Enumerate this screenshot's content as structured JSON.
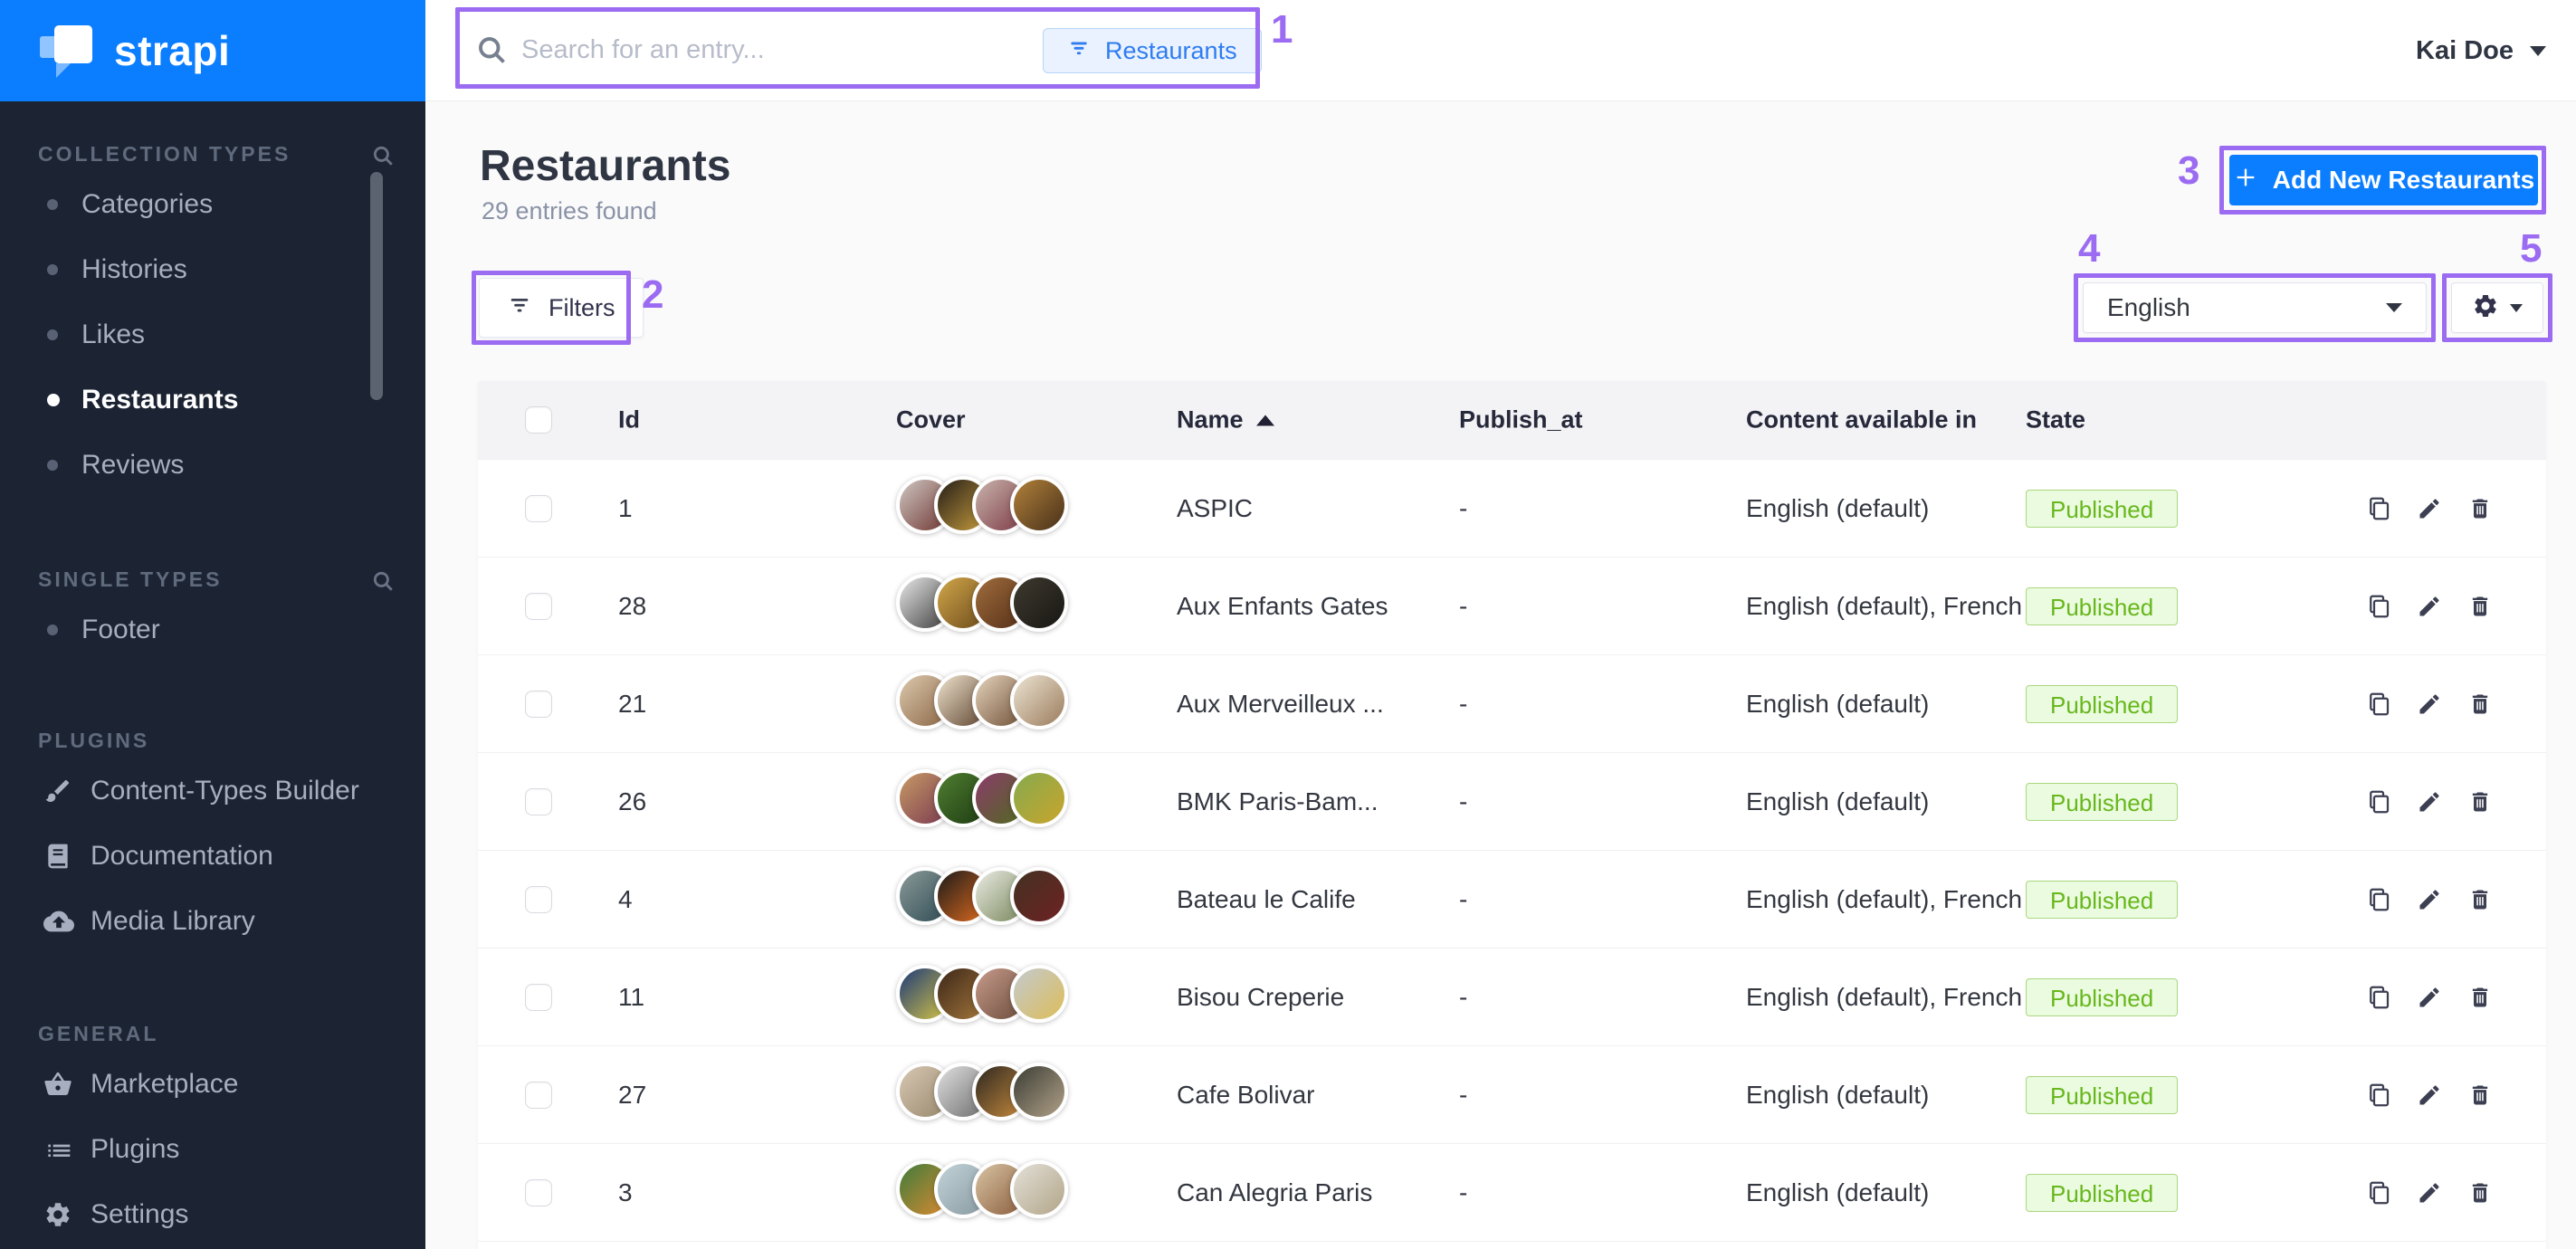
{
  "topbar": {
    "logo_text": "strapi",
    "search_placeholder": "Search for an entry...",
    "search_scope_chip": "Restaurants",
    "user_name": "Kai Doe"
  },
  "sidebar": {
    "sections": [
      {
        "label": "COLLECTION TYPES",
        "items": [
          {
            "label": "Categories"
          },
          {
            "label": "Histories"
          },
          {
            "label": "Likes"
          },
          {
            "label": "Restaurants",
            "active": true
          },
          {
            "label": "Reviews"
          }
        ]
      },
      {
        "label": "SINGLE TYPES",
        "items": [
          {
            "label": "Footer"
          }
        ]
      },
      {
        "label": "PLUGINS",
        "items": [
          {
            "label": "Content-Types Builder",
            "icon": "brush-icon"
          },
          {
            "label": "Documentation",
            "icon": "book-icon"
          },
          {
            "label": "Media Library",
            "icon": "cloud-upload-icon"
          }
        ]
      },
      {
        "label": "GENERAL",
        "items": [
          {
            "label": "Marketplace",
            "icon": "basket-icon"
          },
          {
            "label": "Plugins",
            "icon": "list-icon"
          },
          {
            "label": "Settings",
            "icon": "gear-icon"
          }
        ]
      }
    ]
  },
  "content": {
    "title": "Restaurants",
    "subtitle": "29 entries found",
    "filters_button": "Filters",
    "add_button": "Add New Restaurants",
    "locale_select": "English"
  },
  "table": {
    "headers": {
      "id": "Id",
      "cover": "Cover",
      "name": "Name",
      "publish_at": "Publish_at",
      "languages": "Content available in",
      "state": "State"
    },
    "sort": {
      "column": "Name",
      "direction": "asc"
    },
    "rows": [
      {
        "id": "1",
        "name": "ASPIC",
        "publish_at": "-",
        "languages": "English (default)",
        "state": "Published",
        "cover": [
          [
            "#cfc7c2",
            "#6e3430"
          ],
          [
            "#241d17",
            "#c79d3e"
          ],
          [
            "#c9b4ac",
            "#7c3a45"
          ],
          [
            "#b2813a",
            "#47301a"
          ]
        ]
      },
      {
        "id": "28",
        "name": "Aux Enfants Gates",
        "publish_at": "-",
        "languages": "English (default), French",
        "state": "Published",
        "cover": [
          [
            "#e8e8e8",
            "#3c3c3c"
          ],
          [
            "#d2a74a",
            "#6b4a1b"
          ],
          [
            "#a06c3c",
            "#542f18"
          ],
          [
            "#3e3a30",
            "#191713"
          ]
        ]
      },
      {
        "id": "21",
        "name": "Aux Merveilleux ...",
        "publish_at": "-",
        "languages": "English (default)",
        "state": "Published",
        "cover": [
          [
            "#dcc9ae",
            "#8a6544"
          ],
          [
            "#efe3cd",
            "#5d4430"
          ],
          [
            "#e5d3bc",
            "#6f4f36"
          ],
          [
            "#ece4d3",
            "#9b7c5c"
          ]
        ]
      },
      {
        "id": "26",
        "name": "BMK Paris-Bam...",
        "publish_at": "-",
        "languages": "English (default)",
        "state": "Published",
        "cover": [
          [
            "#c79a66",
            "#79384f"
          ],
          [
            "#4f7e30",
            "#1d3a12"
          ],
          [
            "#8c3a6b",
            "#4f6b1f"
          ],
          [
            "#85aa4e",
            "#c9a52c"
          ]
        ]
      },
      {
        "id": "4",
        "name": "Bateau le Calife",
        "publish_at": "-",
        "languages": "English (default), French",
        "state": "Published",
        "cover": [
          [
            "#8b9a98",
            "#2d4a53"
          ],
          [
            "#1a1a1a",
            "#e06b1e"
          ],
          [
            "#ebebe4",
            "#77875a"
          ],
          [
            "#433122",
            "#6e2222"
          ]
        ]
      },
      {
        "id": "11",
        "name": "Bisou Creperie",
        "publish_at": "-",
        "languages": "English (default), French",
        "state": "Published",
        "cover": [
          [
            "#1d3a78",
            "#d8c644"
          ],
          [
            "#3c2718",
            "#a5773c"
          ],
          [
            "#c79b8b",
            "#6b4b3b"
          ],
          [
            "#c3cad0",
            "#ddbd58"
          ]
        ]
      },
      {
        "id": "27",
        "name": "Cafe Bolivar",
        "publish_at": "-",
        "languages": "English (default)",
        "state": "Published",
        "cover": [
          [
            "#d8c8b4",
            "#97876b"
          ],
          [
            "#e0e0e0",
            "#6c6c6c"
          ],
          [
            "#2d2721",
            "#c78b3c"
          ],
          [
            "#3b3d35",
            "#b1a188"
          ]
        ]
      },
      {
        "id": "3",
        "name": "Can Alegria Paris",
        "publish_at": "-",
        "languages": "English (default)",
        "state": "Published",
        "cover": [
          [
            "#3f7c3c",
            "#dd8a30"
          ],
          [
            "#c2d3d8",
            "#8798a0"
          ],
          [
            "#d8c4a4",
            "#8a5c3b"
          ],
          [
            "#e3e0d8",
            "#b2a588"
          ]
        ]
      }
    ]
  },
  "annotations": {
    "color": "#9b6bf2",
    "labels": [
      "1",
      "2",
      "3",
      "4",
      "5"
    ]
  },
  "colors": {
    "accent_blue": "#0b7eff",
    "sidebar_bg": "#1c2433",
    "published_text": "#68b71c",
    "published_bg": "#eafbe0",
    "published_border": "#aad77e",
    "annotation_purple": "#9b6bf2"
  }
}
